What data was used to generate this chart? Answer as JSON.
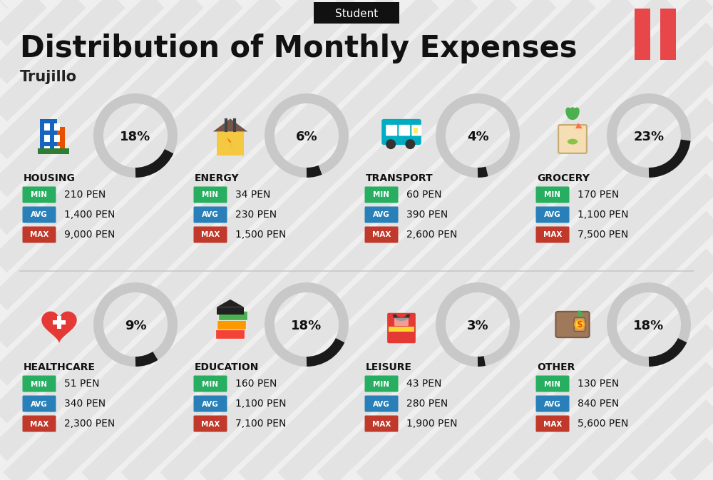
{
  "title": "Distribution of Monthly Expenses",
  "subtitle": "Trujillo",
  "header_tag": "Student",
  "bg_color": "#efefef",
  "stripe_color": "#e3e3e3",
  "categories": [
    {
      "name": "HOUSING",
      "pct": 18,
      "row": 0,
      "col": 0,
      "min_val": "210 PEN",
      "avg_val": "1,400 PEN",
      "max_val": "9,000 PEN"
    },
    {
      "name": "ENERGY",
      "pct": 6,
      "row": 0,
      "col": 1,
      "min_val": "34 PEN",
      "avg_val": "230 PEN",
      "max_val": "1,500 PEN"
    },
    {
      "name": "TRANSPORT",
      "pct": 4,
      "row": 0,
      "col": 2,
      "min_val": "60 PEN",
      "avg_val": "390 PEN",
      "max_val": "2,600 PEN"
    },
    {
      "name": "GROCERY",
      "pct": 23,
      "row": 0,
      "col": 3,
      "min_val": "170 PEN",
      "avg_val": "1,100 PEN",
      "max_val": "7,500 PEN"
    },
    {
      "name": "HEALTHCARE",
      "pct": 9,
      "row": 1,
      "col": 0,
      "min_val": "51 PEN",
      "avg_val": "340 PEN",
      "max_val": "2,300 PEN"
    },
    {
      "name": "EDUCATION",
      "pct": 18,
      "row": 1,
      "col": 1,
      "min_val": "160 PEN",
      "avg_val": "1,100 PEN",
      "max_val": "7,100 PEN"
    },
    {
      "name": "LEISURE",
      "pct": 3,
      "row": 1,
      "col": 2,
      "min_val": "43 PEN",
      "avg_val": "280 PEN",
      "max_val": "1,900 PEN"
    },
    {
      "name": "OTHER",
      "pct": 18,
      "row": 1,
      "col": 3,
      "min_val": "130 PEN",
      "avg_val": "840 PEN",
      "max_val": "5,600 PEN"
    }
  ],
  "min_color": "#27ae60",
  "avg_color": "#2980b9",
  "max_color": "#c0392b",
  "donut_dark_color": "#1a1a1a",
  "donut_gray_color": "#c8c8c8",
  "peru_flag_color": "#e8474a",
  "title_fontsize": 30,
  "subtitle_fontsize": 15,
  "cat_name_fontsize": 10,
  "val_fontsize": 10,
  "badge_fontsize": 7.5,
  "pct_fontsize": 13
}
